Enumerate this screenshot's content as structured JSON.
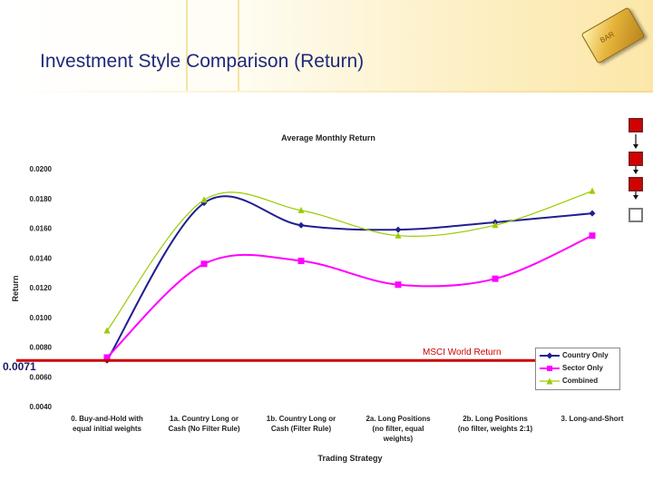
{
  "slide": {
    "title": "Investment Style Comparison (Return)",
    "gold_label": "BAR"
  },
  "colors": {
    "country": "#1f1f8f",
    "sector": "#ff00ff",
    "combined": "#99cc00",
    "reference": "#cc0000",
    "title": "#1f2a7a"
  },
  "chart_data": {
    "type": "line",
    "title": "Average Monthly Return",
    "xlabel": "Trading Strategy",
    "ylabel": "Return",
    "ylim": [
      0.004,
      0.02
    ],
    "yticks": [
      "0.0200",
      "0.0180",
      "0.0160",
      "0.0140",
      "0.0120",
      "0.0100",
      "0.0080",
      "0.0060",
      "0.0040"
    ],
    "categories": [
      [
        "0. Buy-and-Hold with",
        "equal initial weights"
      ],
      [
        "1a. Country Long or",
        "Cash (No Filter Rule)"
      ],
      [
        "1b. Country Long or",
        "Cash (Filter Rule)"
      ],
      [
        "2a. Long Positions",
        "(no filter, equal",
        "weights)"
      ],
      [
        "2b. Long Positions",
        "(no filter, weights 2:1)"
      ],
      [
        "3. Long-and-Short"
      ]
    ],
    "series": [
      {
        "name": "Country Only",
        "marker": "diamond",
        "values": [
          0.0071,
          0.0177,
          0.0162,
          0.0159,
          0.0164,
          0.017
        ]
      },
      {
        "name": "Sector Only",
        "marker": "square",
        "values": [
          0.0073,
          0.0136,
          0.0138,
          0.0122,
          0.0126,
          0.0155
        ]
      },
      {
        "name": "Combined",
        "marker": "triangle",
        "values": [
          0.0091,
          0.0179,
          0.0172,
          0.0155,
          0.0162,
          0.0185
        ]
      }
    ],
    "reference_line": {
      "label": "MSCI World Return",
      "value": 0.0071,
      "value_label": "0.0071"
    },
    "legend_position": "bottom-right"
  }
}
